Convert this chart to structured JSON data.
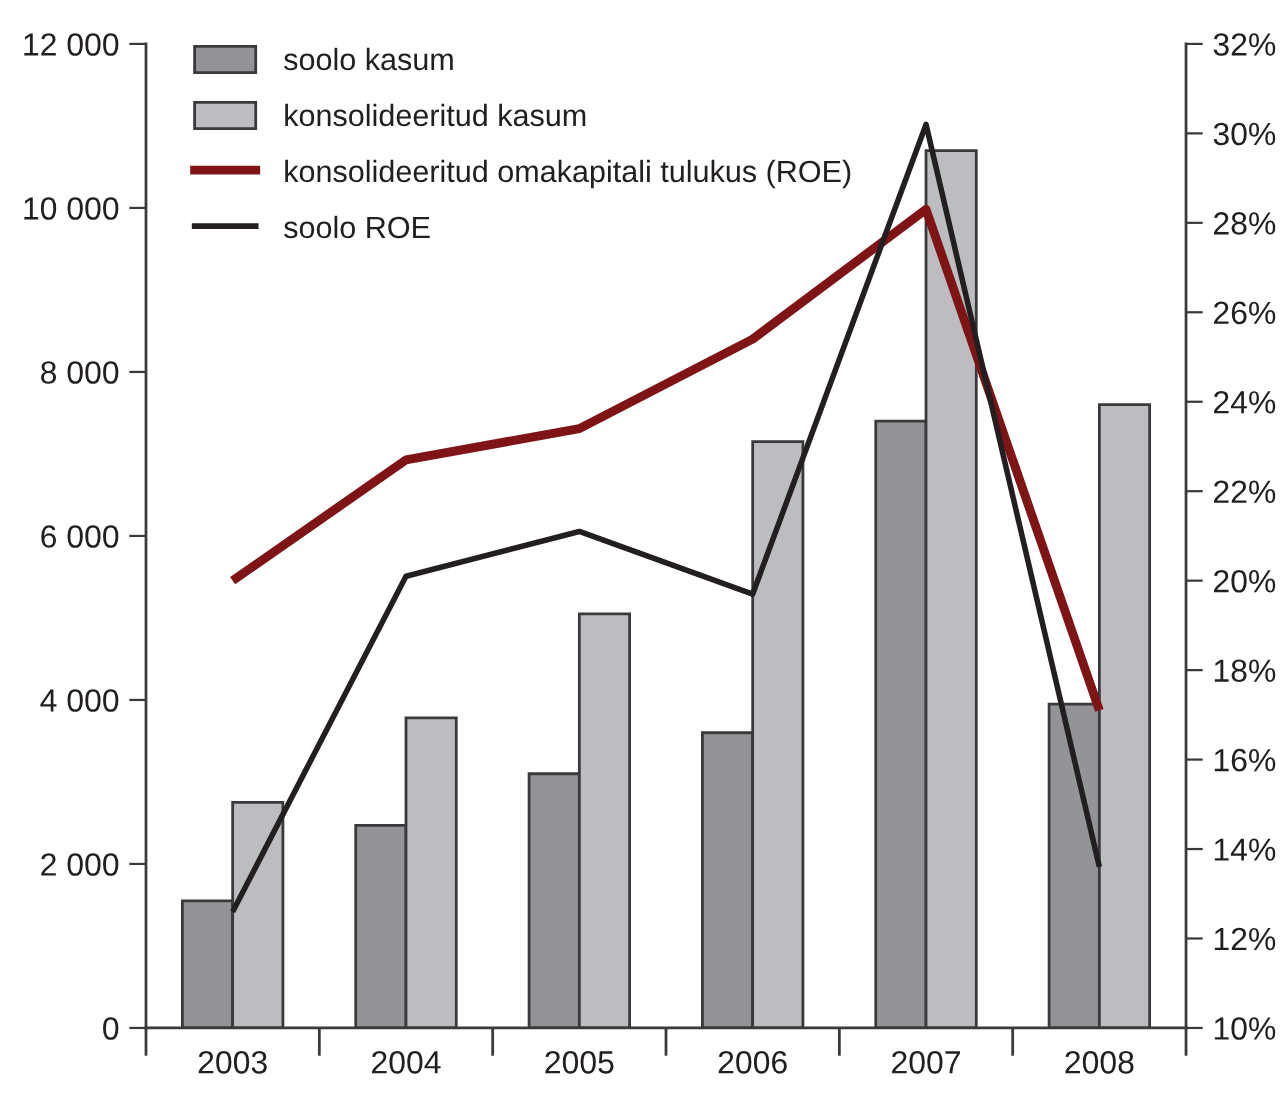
{
  "chart_data": {
    "type": "bar",
    "categories": [
      "2003",
      "2004",
      "2005",
      "2006",
      "2007",
      "2008"
    ],
    "series": [
      {
        "name": "soolo kasum",
        "color": "#939498",
        "values": [
          1550,
          2470,
          3100,
          3600,
          7400,
          3950
        ]
      },
      {
        "name": "konsolideeritud kasum",
        "color": "#bcbdc1",
        "values": [
          2750,
          3780,
          5050,
          7150,
          10700,
          7600
        ]
      },
      {
        "name": "konsolideeritud omakapitali tulukus (ROE)",
        "type": "line",
        "axis": "y2",
        "color": "#7f1417",
        "values": [
          20.0,
          22.7,
          23.4,
          25.4,
          28.3,
          17.1
        ]
      },
      {
        "name": "soolo ROE",
        "type": "line",
        "axis": "y2",
        "color": "#231f20",
        "values": [
          12.6,
          20.1,
          21.1,
          19.7,
          30.2,
          13.6
        ]
      }
    ],
    "ylim": [
      0,
      12000
    ],
    "yticks": [
      0,
      {
        "value": 2000,
        "label": "2 000"
      },
      {
        "value": 4000,
        "label": "4 000"
      },
      {
        "value": 6000,
        "label": "6 000"
      },
      {
        "value": 8000,
        "label": "8 000"
      },
      {
        "value": 10000,
        "label": "10 000"
      },
      {
        "value": 12000,
        "label": "12 000"
      }
    ],
    "y2lim": [
      10,
      32
    ],
    "y2ticks": [
      {
        "value": 10,
        "label": "10%"
      },
      {
        "value": 12,
        "label": "12%"
      },
      {
        "value": 14,
        "label": "14%"
      },
      {
        "value": 16,
        "label": "16%"
      },
      {
        "value": 18,
        "label": "18%"
      },
      {
        "value": 20,
        "label": "20%"
      },
      {
        "value": 22,
        "label": "22%"
      },
      {
        "value": 24,
        "label": "24%"
      },
      {
        "value": 26,
        "label": "26%"
      },
      {
        "value": 28,
        "label": "28%"
      },
      {
        "value": 30,
        "label": "30%"
      },
      {
        "value": 32,
        "label": "32%"
      }
    ],
    "legend": "top left",
    "grid": false
  }
}
